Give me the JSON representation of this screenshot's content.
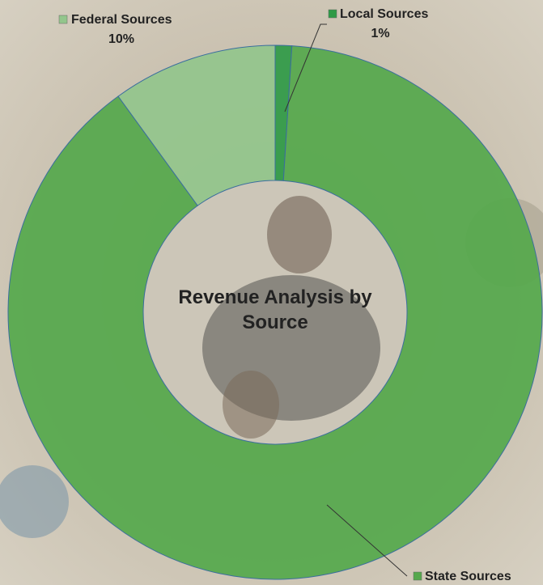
{
  "chart_data": {
    "type": "donut",
    "title": "Revenue Analysis by Source",
    "categories": [
      "Local Sources",
      "State Sources",
      "Federal Sources"
    ],
    "values": [
      1,
      89,
      10
    ],
    "value_labels": [
      "1%",
      null,
      "10%"
    ],
    "colors": [
      "#2f9a46",
      "#55a84c",
      "#93c68c"
    ]
  }
}
